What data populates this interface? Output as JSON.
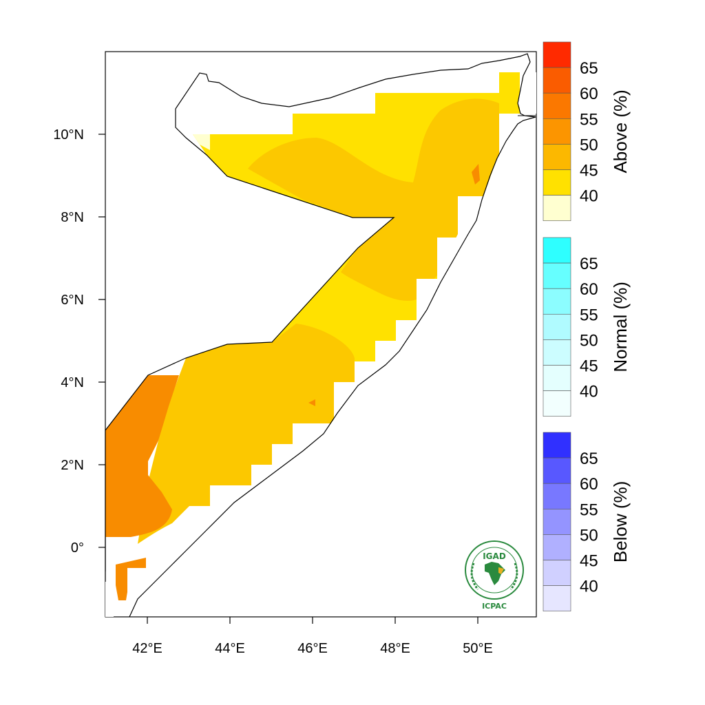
{
  "map": {
    "x_ticks": [
      "42°E",
      "44°E",
      "46°E",
      "48°E",
      "50°E"
    ],
    "y_ticks": [
      "10°N",
      "8°N",
      "6°N",
      "4°N",
      "2°N",
      "0°"
    ],
    "zones": [
      {
        "name": "north-40",
        "category": "Above",
        "level": "40",
        "color": "#ffe100"
      },
      {
        "name": "north-45",
        "category": "Above",
        "level": "45",
        "color": "#fcc800"
      },
      {
        "name": "south-45",
        "category": "Above",
        "level": "45",
        "color": "#fcc800"
      },
      {
        "name": "southwest-50",
        "category": "Above",
        "level": "50",
        "color": "#f88c00"
      }
    ]
  },
  "legends": [
    {
      "title": "Above (%)",
      "levels": [
        "65",
        "60",
        "55",
        "50",
        "45",
        "40"
      ],
      "colors": [
        "#ff2a00",
        "#fa5c00",
        "#fb7800",
        "#fc9500",
        "#fcb800",
        "#ffe100",
        "#ffffd0"
      ]
    },
    {
      "title": "Normal (%)",
      "levels": [
        "65",
        "60",
        "55",
        "50",
        "45",
        "40"
      ],
      "colors": [
        "#2effff",
        "#66ffff",
        "#8cfdff",
        "#b0fbff",
        "#ccfdff",
        "#e4fffe",
        "#f2fffe"
      ]
    },
    {
      "title": "Below (%)",
      "levels": [
        "65",
        "60",
        "55",
        "50",
        "45",
        "40"
      ],
      "colors": [
        "#3030ff",
        "#5858ff",
        "#7878ff",
        "#9494ff",
        "#b0b0ff",
        "#d0d0ff",
        "#e6e6ff"
      ]
    }
  ],
  "logo": {
    "acronym": "IGAD",
    "center": "ICPAC"
  }
}
